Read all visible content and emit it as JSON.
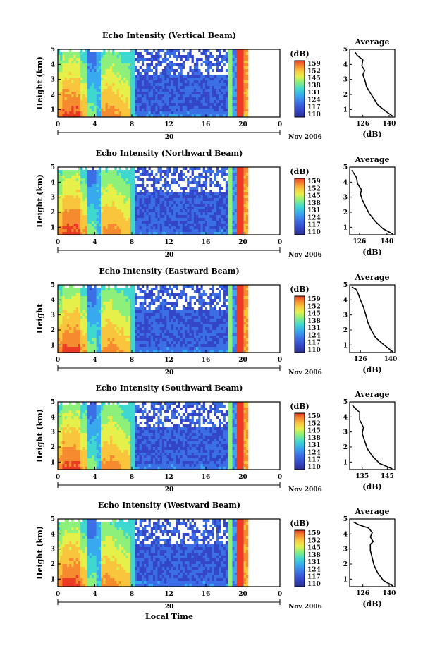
{
  "chart_data": [
    {
      "type": "heatmap",
      "title": "Echo Intensity (Vertical Beam)",
      "ylabel": "Height (km)",
      "xlim": [
        0,
        24
      ],
      "ylim": [
        0.5,
        5
      ],
      "x_ticks": [
        "0",
        "4",
        "8",
        "12",
        "16",
        "20",
        "0"
      ],
      "y_ticks": [
        "1",
        "2",
        "3",
        "4",
        "5"
      ],
      "date_label": "20",
      "month_label": "Nov 2006",
      "colorbar": {
        "unit": "(dB)",
        "ticks": [
          "159",
          "152",
          "145",
          "138",
          "131",
          "124",
          "117",
          "110"
        ]
      },
      "average": {
        "title": "Average",
        "xlabel": "(dB)",
        "x_ticks": [
          "126",
          "140"
        ],
        "y_ticks": [
          "1",
          "2",
          "3",
          "4",
          "5"
        ],
        "xlim": [
          119,
          143
        ],
        "height": [
          0.55,
          0.9,
          1.3,
          1.7,
          2.1,
          2.5,
          3.0,
          3.3,
          3.6,
          3.9,
          4.3,
          4.6,
          4.8
        ],
        "value": [
          142,
          138,
          134,
          132,
          130,
          128,
          127,
          126,
          127,
          125.5,
          126,
          123,
          122
        ]
      }
    },
    {
      "type": "heatmap",
      "title": "Echo Intensity (Northward Beam)",
      "ylabel": "Height (km)",
      "xlim": [
        0,
        24
      ],
      "ylim": [
        0.5,
        5
      ],
      "x_ticks": [
        "0",
        "4",
        "8",
        "12",
        "16",
        "20",
        "0"
      ],
      "y_ticks": [
        "1",
        "2",
        "3",
        "4",
        "5"
      ],
      "date_label": "20",
      "month_label": "Nov 2006",
      "colorbar": {
        "unit": "(dB)",
        "ticks": [
          "159",
          "152",
          "145",
          "138",
          "131",
          "124",
          "117",
          "110"
        ]
      },
      "average": {
        "title": "Average",
        "xlabel": "(dB)",
        "x_ticks": [
          "126",
          "140"
        ],
        "y_ticks": [
          "1",
          "2",
          "3",
          "4",
          "5"
        ],
        "xlim": [
          121,
          144
        ],
        "height": [
          0.55,
          0.9,
          1.4,
          1.9,
          2.4,
          2.8,
          3.2,
          3.5,
          3.9,
          4.3,
          4.6,
          4.8
        ],
        "value": [
          143,
          138,
          134,
          131,
          129,
          127.5,
          126.5,
          127,
          125,
          124.5,
          123,
          122
        ]
      }
    },
    {
      "type": "heatmap",
      "title": "Echo Intensity (Eastward Beam)",
      "ylabel": "Height",
      "xlim": [
        0,
        24
      ],
      "ylim": [
        0.5,
        5
      ],
      "x_ticks": [
        "0",
        "4",
        "8",
        "12",
        "16",
        "20",
        "0"
      ],
      "y_ticks": [
        "1",
        "2",
        "3",
        "4",
        "5"
      ],
      "date_label": "20",
      "month_label": "Nov 2006",
      "colorbar": {
        "unit": "(dB)",
        "ticks": [
          "159",
          "152",
          "145",
          "138",
          "131",
          "124",
          "117",
          "110"
        ]
      },
      "average": {
        "title": "Average",
        "xlabel": "(dB)",
        "x_ticks": [
          "126",
          "140"
        ],
        "y_ticks": [
          "1",
          "2",
          "3",
          "4",
          "5"
        ],
        "xlim": [
          121,
          142
        ],
        "height": [
          0.55,
          1.0,
          1.5,
          2.0,
          2.5,
          3.0,
          3.5,
          4.0,
          4.4,
          4.7,
          4.85
        ],
        "value": [
          141,
          137,
          133,
          131,
          129.5,
          128.5,
          127.5,
          126,
          125,
          124,
          122
        ]
      }
    },
    {
      "type": "heatmap",
      "title": "Echo Intensity (Southward Beam)",
      "ylabel": "Height (km)",
      "xlim": [
        0,
        24
      ],
      "ylim": [
        0.5,
        5
      ],
      "x_ticks": [
        "0",
        "4",
        "8",
        "12",
        "16",
        "20",
        "0"
      ],
      "y_ticks": [
        "1",
        "2",
        "3",
        "4",
        "5"
      ],
      "date_label": "20",
      "month_label": "Nov 2006",
      "colorbar": {
        "unit": "(dB)",
        "ticks": [
          "159",
          "152",
          "145",
          "138",
          "131",
          "124",
          "117",
          "110"
        ]
      },
      "average": {
        "title": "Average",
        "xlabel": "(dB)",
        "x_ticks": [
          "135",
          "145"
        ],
        "y_ticks": [
          "1",
          "2",
          "3",
          "4",
          "5"
        ],
        "xlim": [
          130,
          148
        ],
        "height": [
          0.55,
          0.9,
          1.4,
          1.9,
          2.4,
          2.9,
          3.3,
          3.8,
          4.3,
          4.6,
          4.8
        ],
        "value": [
          147,
          142,
          139,
          137,
          136,
          135,
          135.5,
          134,
          134,
          132,
          131
        ]
      }
    },
    {
      "type": "heatmap",
      "title": "Echo Intensity (Westward Beam)",
      "ylabel": "Height (km)",
      "xlim": [
        0,
        24
      ],
      "ylim": [
        0.5,
        5
      ],
      "x_ticks": [
        "0",
        "4",
        "8",
        "12",
        "16",
        "20",
        "0"
      ],
      "y_ticks": [
        "1",
        "2",
        "3",
        "4",
        "5"
      ],
      "date_label": "20",
      "month_label": "Nov 2006",
      "x_axis_label": "Local Time",
      "colorbar": {
        "unit": "(dB)",
        "ticks": [
          "159",
          "152",
          "145",
          "138",
          "131",
          "124",
          "117",
          "110"
        ]
      },
      "average": {
        "title": "Average",
        "xlabel": "(dB)",
        "x_ticks": [
          "126",
          "140"
        ],
        "y_ticks": [
          "1",
          "2",
          "3",
          "4",
          "5"
        ],
        "xlim": [
          119,
          143
        ],
        "height": [
          0.55,
          0.9,
          1.4,
          1.9,
          2.4,
          2.9,
          3.3,
          3.5,
          3.8,
          4.1,
          4.4,
          4.6,
          4.8
        ],
        "value": [
          142,
          137,
          134,
          132,
          131,
          130,
          130,
          131.5,
          130,
          131,
          129,
          124,
          121
        ]
      }
    }
  ],
  "colors": {
    "colormap": [
      "#2b2f8f",
      "#3446c8",
      "#3b6fe6",
      "#38a9ef",
      "#3fd8d0",
      "#8df07a",
      "#e6f04a",
      "#f9c53c",
      "#f58a2e",
      "#ec3b24"
    ]
  }
}
